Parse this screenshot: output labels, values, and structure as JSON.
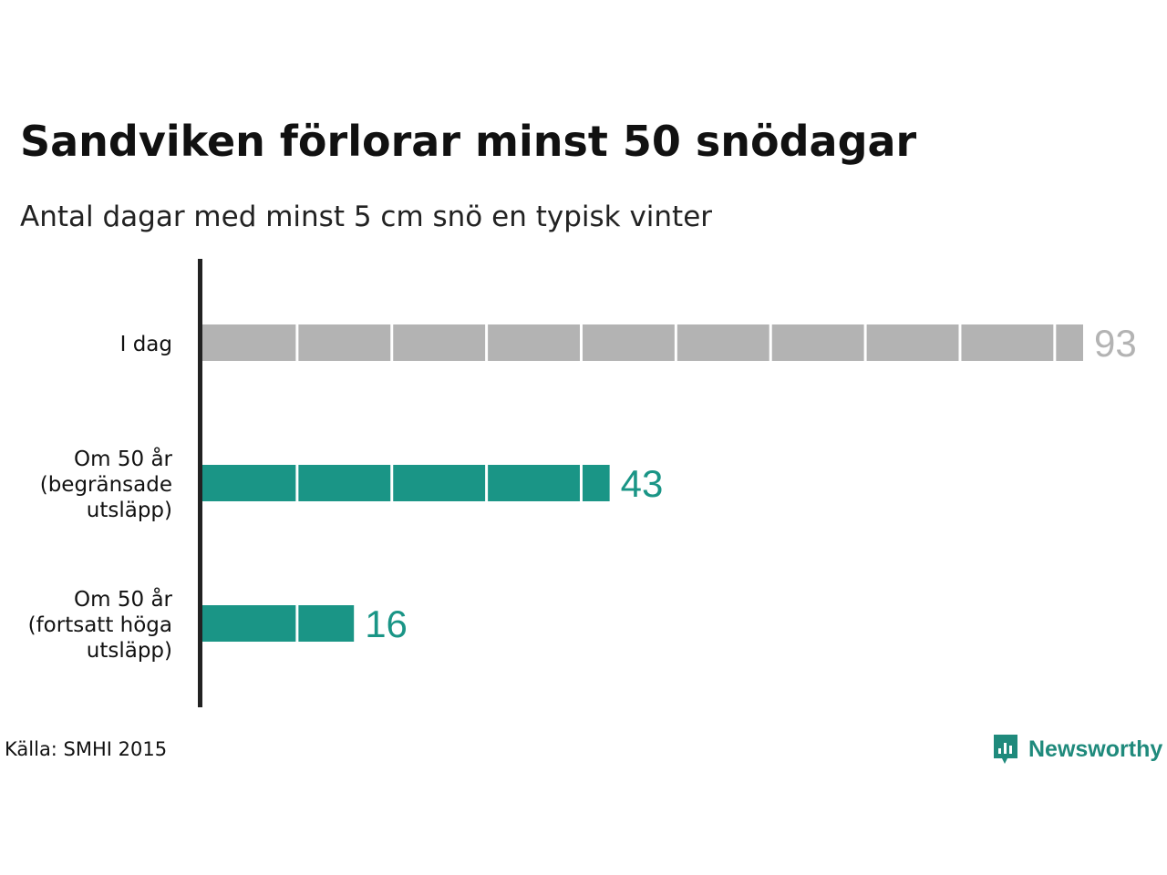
{
  "title": "Sandviken förlorar minst 50 snödagar",
  "subtitle": "Antal dagar med minst 5 cm snö en typisk vinter",
  "source": "Källa: SMHI 2015",
  "brand": {
    "name": "Newsworthy",
    "icon": "newsworthy-logo-icon"
  },
  "colors": {
    "today": "#b3b3b3",
    "future": "#1a9586",
    "axis": "#222222"
  },
  "chart_data": {
    "type": "bar",
    "orientation": "horizontal",
    "title": "Sandviken förlorar minst 50 snödagar",
    "subtitle": "Antal dagar med minst 5 cm snö en typisk vinter",
    "categories": [
      [
        "I dag"
      ],
      [
        "Om 50 år",
        "(begränsade",
        "utsläpp)"
      ],
      [
        "Om 50 år",
        "(fortsatt höga",
        "utsläpp)"
      ]
    ],
    "values": [
      93,
      43,
      16
    ],
    "value_labels": [
      "93",
      "43",
      "16"
    ],
    "segment_size": 10,
    "xlim": [
      0,
      93
    ],
    "grid": false,
    "legend": "none"
  }
}
